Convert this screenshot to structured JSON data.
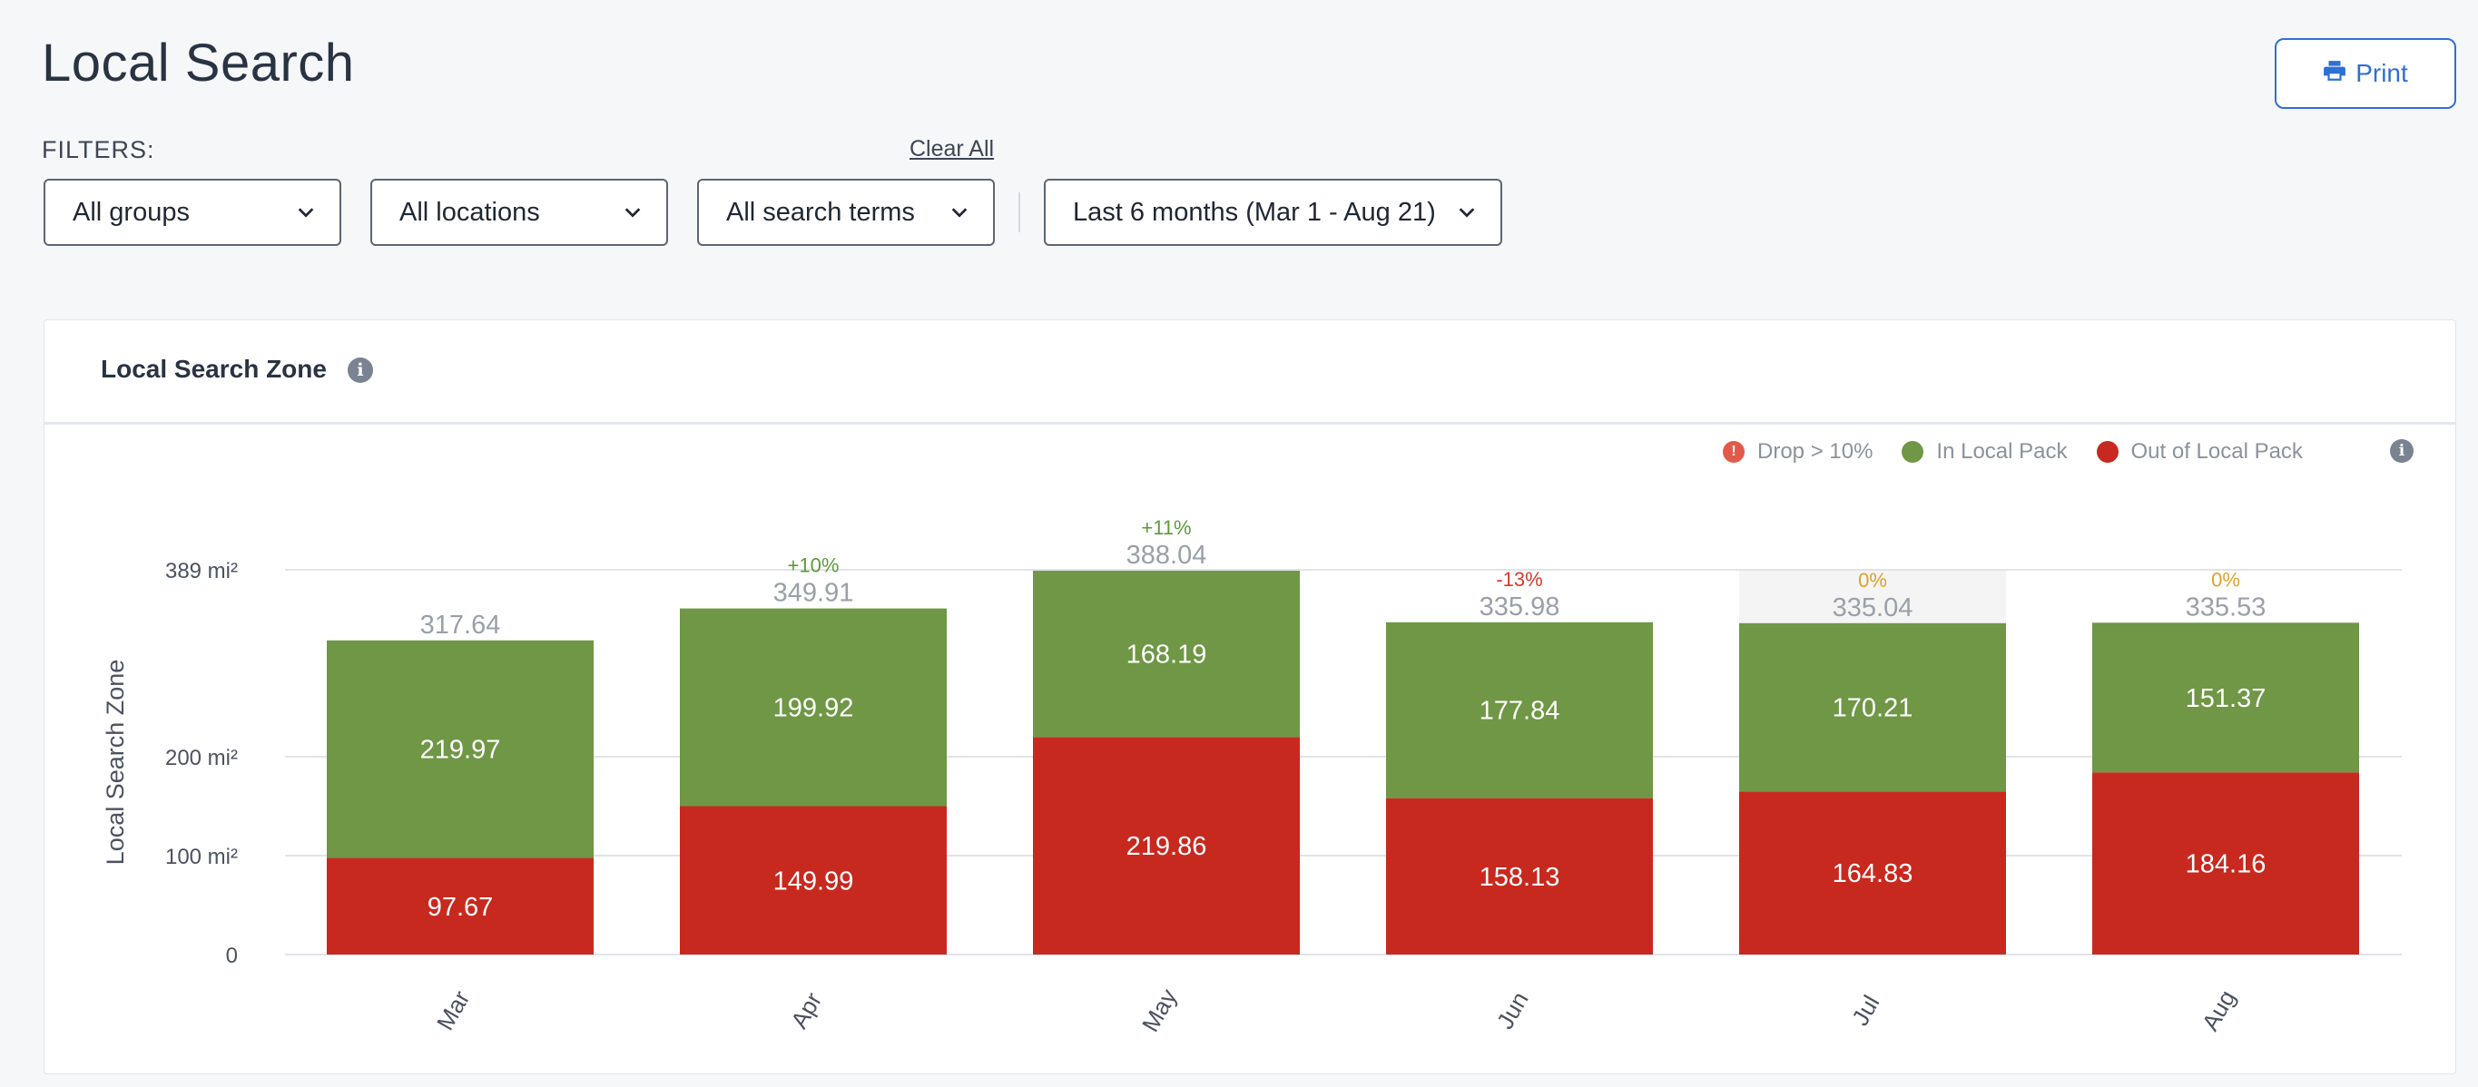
{
  "page": {
    "title": "Local Search"
  },
  "toolbar": {
    "print_label": "Print"
  },
  "filters": {
    "label": "FILTERS:",
    "clear_all": "Clear All",
    "group": "All groups",
    "location": "All locations",
    "search_term": "All search terms",
    "date_range": "Last 6 months (Mar 1 - Aug 21)"
  },
  "card": {
    "title": "Local Search Zone"
  },
  "legend": {
    "drop": "Drop > 10%",
    "in_pack": "In Local Pack",
    "out_pack": "Out of Local Pack"
  },
  "colors": {
    "in_pack": "#6f9745",
    "out_pack": "#c8291f",
    "positive": "#5d9a3b",
    "negative": "#d7392c",
    "neutral": "#e0a02a",
    "accent": "#2f6fd6"
  },
  "chart_data": {
    "type": "bar",
    "stacked": true,
    "categories": [
      "Mar",
      "Apr",
      "May",
      "Jun",
      "Jul",
      "Aug"
    ],
    "series": [
      {
        "name": "Out of Local Pack",
        "values": [
          97.67,
          149.99,
          219.86,
          158.13,
          164.83,
          184.16
        ]
      },
      {
        "name": "In Local Pack",
        "values": [
          219.97,
          199.92,
          168.19,
          177.84,
          170.21,
          151.37
        ]
      }
    ],
    "totals": [
      "317.64",
      "349.91",
      "388.04",
      "335.98",
      "335.04",
      "335.53"
    ],
    "changes": [
      "",
      "+10%",
      "+11%",
      "-13%",
      "0%",
      "0%"
    ],
    "change_kinds": [
      "",
      "positive",
      "positive",
      "negative",
      "neutral",
      "neutral"
    ],
    "highlighted_category": "Jul",
    "ylabel": "Local Search Zone",
    "yticks": [
      {
        "value": 0,
        "label": "0"
      },
      {
        "value": 100,
        "label": "100 mi²"
      },
      {
        "value": 200,
        "label": "200 mi²"
      },
      {
        "value": 389,
        "label": "389 mi²"
      }
    ],
    "ylim": [
      0,
      389
    ],
    "grid": true,
    "legend_position": "top-right"
  }
}
